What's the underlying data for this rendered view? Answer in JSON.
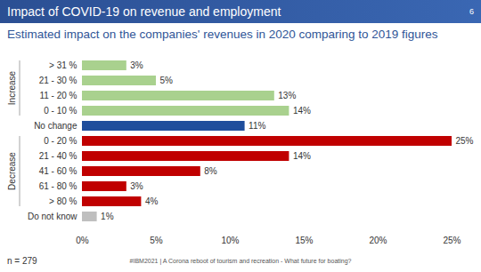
{
  "chart_data": {
    "type": "bar",
    "orientation": "horizontal",
    "title": "Impact of COVID-19 on revenue and employment",
    "page": "6",
    "subtitle": "Estimated impact on the companies' revenues in 2020 comparing to 2019 figures",
    "categories": [
      "> 31 %",
      "21 - 30 %",
      "11 - 20 %",
      "0 - 10 %",
      "No change",
      "0 - 20 %",
      "21 - 40 %",
      "41 - 60 %",
      "61 - 80 %",
      "> 80 %",
      "Do not know"
    ],
    "values": [
      3,
      5,
      13,
      14,
      11,
      25,
      14,
      8,
      3,
      4,
      1
    ],
    "value_labels": [
      "3%",
      "5%",
      "13%",
      "14%",
      "11%",
      "25%",
      "14%",
      "8%",
      "3%",
      "4%",
      "1%"
    ],
    "colors": [
      "#a9d18e",
      "#a9d18e",
      "#a9d18e",
      "#a9d18e",
      "#1f4e9c",
      "#c00000",
      "#c00000",
      "#c00000",
      "#c00000",
      "#c00000",
      "#bfbfbf"
    ],
    "groups": [
      {
        "label": "Increase",
        "categories": [
          "> 31 %",
          "21 - 30 %",
          "11 - 20 %",
          "0 - 10 %"
        ]
      },
      {
        "label": "Decrease",
        "categories": [
          "0 - 20 %",
          "21 - 40 %",
          "41 - 60 %",
          "61 - 80 %",
          "> 80 %"
        ]
      }
    ],
    "xlim": [
      0,
      25
    ],
    "xticks": [
      {
        "value": 0,
        "label": "0%"
      },
      {
        "value": 5,
        "label": "5%"
      },
      {
        "value": 10,
        "label": "10%"
      },
      {
        "value": 15,
        "label": "15%"
      },
      {
        "value": 20,
        "label": "20%"
      },
      {
        "value": 25,
        "label": "25%"
      }
    ],
    "grid": false,
    "data_labels": true,
    "note": "n = 279",
    "footer": "#IBM2021 | A Corona reboot of tourism and recreation - What future for boating?"
  }
}
